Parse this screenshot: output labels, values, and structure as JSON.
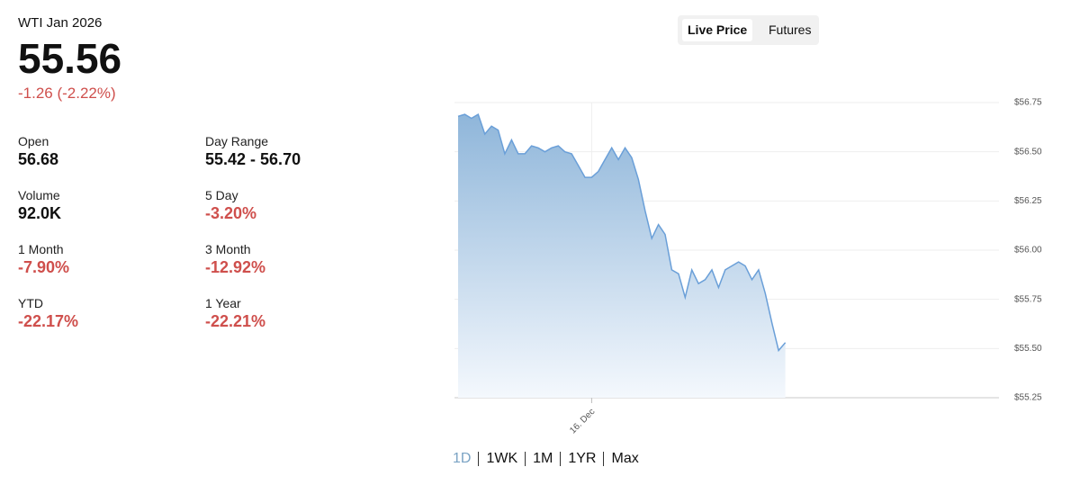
{
  "header": {
    "name": "WTI Jan 2026",
    "price": "55.56",
    "change": "-1.26 (-2.22%)"
  },
  "stats": [
    {
      "label": "Open",
      "value": "56.68"
    },
    {
      "label": "Day Range",
      "value": "55.42 - 56.70"
    },
    {
      "label": "Volume",
      "value": "92.0K"
    },
    {
      "label": "5 Day",
      "value": "-3.20%"
    },
    {
      "label": "1 Month",
      "value": "-7.90%"
    },
    {
      "label": "3 Month",
      "value": "-12.92%"
    },
    {
      "label": "YTD",
      "value": "-22.17%"
    },
    {
      "label": "1 Year",
      "value": "-22.21%"
    }
  ],
  "tabs": [
    "Live Price",
    "Futures"
  ],
  "ranges": [
    "1D",
    "1WK",
    "1M",
    "1YR",
    "Max"
  ],
  "chart_data": {
    "type": "area",
    "color": "#6a9fd8",
    "categories": [
      null,
      null,
      null,
      null,
      null,
      null,
      null,
      null,
      null,
      null,
      null,
      null,
      null,
      null,
      null,
      null,
      null,
      null,
      null,
      null,
      "16. Dec",
      null,
      null,
      null,
      null,
      null,
      null,
      null,
      null,
      null,
      null,
      null,
      null,
      null,
      null,
      null,
      null,
      null,
      null,
      null,
      null,
      null,
      null,
      null,
      null,
      null,
      null,
      null,
      null,
      null,
      null,
      null,
      null,
      null,
      null,
      null,
      null,
      null,
      null,
      null,
      null,
      null,
      null,
      null,
      null,
      null,
      null,
      null,
      null,
      null,
      null,
      null,
      null,
      null,
      null,
      null,
      null,
      null,
      null,
      null,
      null,
      null
    ],
    "values": [
      56.68,
      56.69,
      56.67,
      56.69,
      56.59,
      56.63,
      56.61,
      56.49,
      56.56,
      56.49,
      56.49,
      56.53,
      56.52,
      56.5,
      56.52,
      56.53,
      56.5,
      56.49,
      56.43,
      56.37,
      56.37,
      56.4,
      56.46,
      56.52,
      56.46,
      56.52,
      56.47,
      56.36,
      56.2,
      56.06,
      56.13,
      56.08,
      55.9,
      55.88,
      55.76,
      55.9,
      55.83,
      55.85,
      55.9,
      55.81,
      55.9,
      55.92,
      55.94,
      55.92,
      55.85,
      55.9,
      55.78,
      55.63,
      55.49,
      55.53,
      null,
      null,
      null,
      null,
      null,
      null,
      null,
      null,
      null,
      null,
      null,
      null,
      null,
      null,
      null,
      null,
      null,
      null,
      null,
      null,
      null,
      null,
      null,
      null,
      null,
      null,
      null,
      null,
      null,
      null,
      null,
      null
    ],
    "ylim": [
      55.25,
      56.75
    ],
    "yticks": [
      {
        "value": 55.25,
        "label": "$55.25"
      },
      {
        "value": 55.5,
        "label": "$55.50"
      },
      {
        "value": 55.75,
        "label": "$55.75"
      },
      {
        "value": 56,
        "label": "$56.00"
      },
      {
        "value": 56.25,
        "label": "$56.25"
      },
      {
        "value": 56.5,
        "label": "$56.50"
      },
      {
        "value": 56.75,
        "label": "$56.75"
      }
    ],
    "grid": true
  }
}
